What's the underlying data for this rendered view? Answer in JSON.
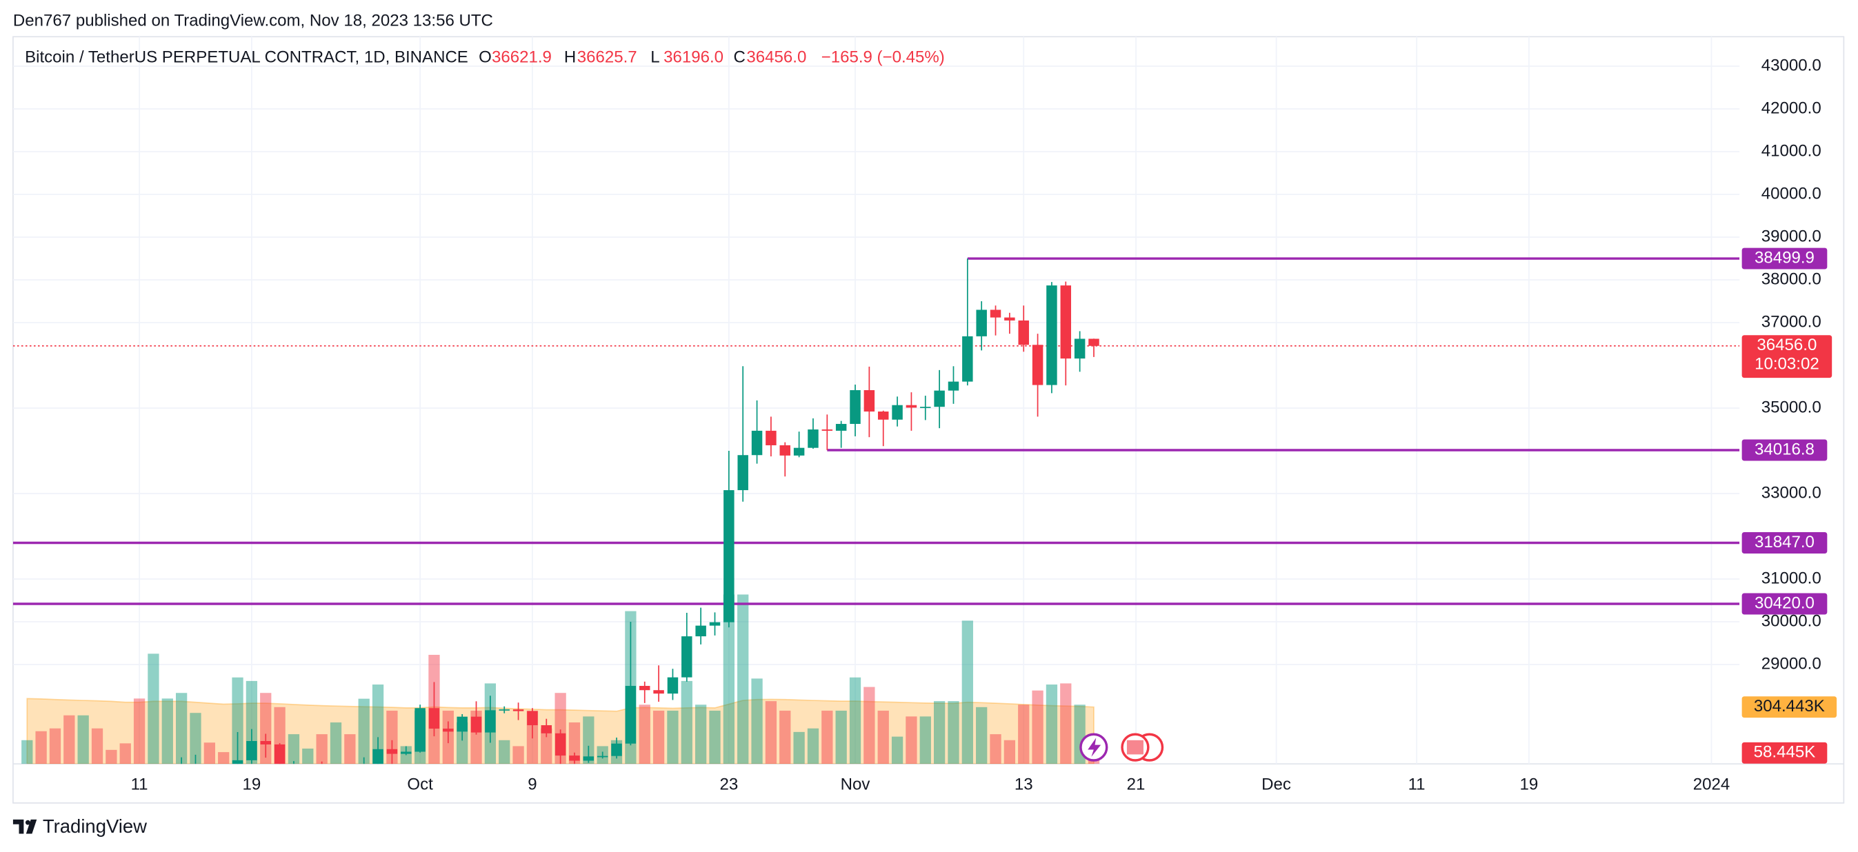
{
  "publisher": "Den767 published on TradingView.com, Nov 18, 2023 13:56 UTC",
  "brand": "TradingView",
  "header": {
    "symbol": "Bitcoin / TetherUS PERPETUAL CONTRACT, 1D, BINANCE",
    "ohlc": [
      {
        "key": "O",
        "value": "36621.9"
      },
      {
        "key": "H",
        "value": "36625.7"
      },
      {
        "key": "L",
        "value": "36196.0"
      },
      {
        "key": "C",
        "value": "36456.0"
      }
    ],
    "change": "−165.9 (−0.45%)"
  },
  "chart_data": {
    "type": "candlestick",
    "up_color": "#089981",
    "down_color": "#f23645",
    "level_color": "#9c27b0",
    "volume_ma_color": "#ff9800",
    "grid": true,
    "x": [
      "2023-09-03",
      "2023-09-04",
      "2023-09-05",
      "2023-09-06",
      "2023-09-07",
      "2023-09-08",
      "2023-09-09",
      "2023-09-10",
      "2023-09-11",
      "2023-09-12",
      "2023-09-13",
      "2023-09-14",
      "2023-09-15",
      "2023-09-16",
      "2023-09-17",
      "2023-09-18",
      "2023-09-19",
      "2023-09-20",
      "2023-09-21",
      "2023-09-22",
      "2023-09-23",
      "2023-09-24",
      "2023-09-25",
      "2023-09-26",
      "2023-09-27",
      "2023-09-28",
      "2023-09-29",
      "2023-09-30",
      "2023-10-01",
      "2023-10-02",
      "2023-10-03",
      "2023-10-04",
      "2023-10-05",
      "2023-10-06",
      "2023-10-07",
      "2023-10-08",
      "2023-10-09",
      "2023-10-10",
      "2023-10-11",
      "2023-10-12",
      "2023-10-13",
      "2023-10-14",
      "2023-10-15",
      "2023-10-16",
      "2023-10-17",
      "2023-10-18",
      "2023-10-19",
      "2023-10-20",
      "2023-10-21",
      "2023-10-22",
      "2023-10-23",
      "2023-10-24",
      "2023-10-25",
      "2023-10-26",
      "2023-10-27",
      "2023-10-28",
      "2023-10-29",
      "2023-10-30",
      "2023-10-31",
      "2023-11-01",
      "2023-11-02",
      "2023-11-03",
      "2023-11-04",
      "2023-11-05",
      "2023-11-06",
      "2023-11-07",
      "2023-11-08",
      "2023-11-09",
      "2023-11-10",
      "2023-11-11",
      "2023-11-12",
      "2023-11-13",
      "2023-11-14",
      "2023-11-15",
      "2023-11-16",
      "2023-11-17",
      "2023-11-18"
    ],
    "open": [
      25940,
      26000,
      25810,
      25780,
      25750,
      26240,
      25900,
      25890,
      25830,
      25150,
      25850,
      26220,
      26530,
      26600,
      26570,
      26530,
      26760,
      27210,
      27130,
      26570,
      26580,
      26580,
      26250,
      26300,
      26220,
      26360,
      27020,
      26910,
      26960,
      27980,
      27500,
      27430,
      27780,
      27410,
      27930,
      27950,
      27910,
      27580,
      27390,
      26870,
      26750,
      26850,
      26860,
      27150,
      28500,
      28400,
      28320,
      28700,
      29660,
      29910,
      29990,
      33080,
      33900,
      34470,
      34130,
      33890,
      34070,
      34500,
      34470,
      34630,
      35420,
      34920,
      34730,
      35070,
      35010,
      35030,
      35410,
      35620,
      36680,
      37300,
      37120,
      37050,
      36480,
      35540,
      37870,
      36160,
      36621.9
    ],
    "high": [
      26120,
      26100,
      25860,
      26030,
      26440,
      26420,
      25940,
      26000,
      25880,
      26550,
      26380,
      26830,
      26890,
      26670,
      26630,
      27420,
      27490,
      27380,
      27160,
      26740,
      26640,
      26730,
      26430,
      26380,
      26830,
      27300,
      27230,
      27090,
      28060,
      28590,
      27670,
      27840,
      28140,
      28270,
      28020,
      28110,
      27980,
      27730,
      27480,
      26940,
      27100,
      26960,
      27290,
      30000,
      28600,
      28980,
      28900,
      30210,
      30330,
      30220,
      34000,
      35980,
      35180,
      34800,
      34200,
      34450,
      34760,
      34850,
      34700,
      35550,
      35970,
      34940,
      35270,
      35370,
      35290,
      35890,
      35980,
      38499.9,
      37500,
      37400,
      37230,
      37400,
      36740,
      37950,
      37960,
      36800,
      36625.7
    ],
    "low": [
      25800,
      25600,
      25580,
      25380,
      25610,
      25650,
      25800,
      25600,
      24900,
      25130,
      25770,
      26130,
      26220,
      26470,
      26410,
      26380,
      26670,
      26820,
      26350,
      26480,
      26510,
      26140,
      25990,
      26100,
      26090,
      26330,
      26670,
      26880,
      26940,
      27320,
      27160,
      27220,
      27360,
      27170,
      27860,
      27700,
      27270,
      27300,
      26540,
      26560,
      26700,
      26800,
      26800,
      27110,
      28100,
      28130,
      28170,
      28600,
      29470,
      29680,
      29870,
      32810,
      33700,
      33870,
      33400,
      33850,
      34050,
      34016.8,
      34070,
      34340,
      34320,
      34110,
      34570,
      34470,
      34720,
      34530,
      35100,
      35530,
      36350,
      36700,
      36740,
      36320,
      34800,
      35350,
      35530,
      35850,
      36196.0
    ],
    "close": [
      26000,
      25810,
      25780,
      25750,
      26240,
      25900,
      25890,
      25830,
      25150,
      25850,
      26220,
      26530,
      26600,
      26570,
      26530,
      26760,
      27210,
      27130,
      26570,
      26580,
      26580,
      26250,
      26300,
      26220,
      26360,
      27020,
      26910,
      26960,
      27980,
      27500,
      27430,
      27780,
      27410,
      27930,
      27950,
      27910,
      27580,
      27390,
      26870,
      26750,
      26850,
      26860,
      27150,
      28500,
      28400,
      28320,
      28700,
      29660,
      29910,
      29990,
      33080,
      33900,
      34470,
      34130,
      33890,
      34070,
      34500,
      34470,
      34630,
      35420,
      34920,
      34730,
      35070,
      35010,
      35030,
      35410,
      35620,
      36680,
      37300,
      37120,
      37050,
      36480,
      35540,
      37870,
      36160,
      36621.9,
      36456.0
    ],
    "volume": [
      127,
      175,
      190,
      260,
      260,
      190,
      75,
      110,
      350,
      590,
      350,
      380,
      273,
      114,
      63,
      463,
      444,
      380,
      304,
      159,
      82,
      159,
      222,
      159,
      349,
      425,
      285,
      95,
      285,
      584,
      285,
      222,
      285,
      431,
      127,
      95,
      285,
      190,
      380,
      222,
      254,
      95,
      127,
      818,
      317,
      285,
      285,
      444,
      317,
      285,
      907,
      907,
      457,
      336,
      285,
      171,
      190,
      285,
      285,
      463,
      412,
      285,
      146,
      254,
      254,
      336,
      336,
      767,
      304,
      159,
      127,
      317,
      393,
      425,
      431,
      317,
      58.445
    ],
    "volume_ma": [
      350,
      348,
      345,
      342,
      340,
      338,
      335,
      330,
      330,
      335,
      335,
      335,
      330,
      325,
      320,
      322,
      325,
      325,
      322,
      318,
      315,
      312,
      310,
      308,
      306,
      305,
      303,
      300,
      300,
      305,
      302,
      300,
      300,
      302,
      298,
      295,
      293,
      290,
      290,
      288,
      286,
      284,
      282,
      300,
      302,
      300,
      298,
      300,
      302,
      300,
      320,
      340,
      345,
      346,
      345,
      342,
      340,
      338,
      336,
      336,
      334,
      332,
      330,
      328,
      326,
      325,
      324,
      330,
      328,
      325,
      322,
      318,
      315,
      312,
      310,
      308,
      304.443
    ],
    "xlim": [
      "2023-09-02",
      "2024-01-03"
    ],
    "ylim": [
      26675,
      43690
    ],
    "volume_lim": [
      0,
      3894
    ],
    "xticks": [
      {
        "value": "2023-09-11",
        "label": "11"
      },
      {
        "value": "2023-09-19",
        "label": "19"
      },
      {
        "value": "2023-10-01",
        "label": "Oct"
      },
      {
        "value": "2023-10-09",
        "label": "9"
      },
      {
        "value": "2023-10-23",
        "label": "23"
      },
      {
        "value": "2023-11-01",
        "label": "Nov"
      },
      {
        "value": "2023-11-13",
        "label": "13"
      },
      {
        "value": "2023-11-21",
        "label": "21"
      },
      {
        "value": "2023-12-01",
        "label": "Dec"
      },
      {
        "value": "2023-12-11",
        "label": "11"
      },
      {
        "value": "2023-12-19",
        "label": "19"
      },
      {
        "value": "2024-01-01",
        "label": "2024"
      }
    ],
    "yticks": [
      {
        "value": 43000,
        "label": "43000.0"
      },
      {
        "value": 42000,
        "label": "42000.0"
      },
      {
        "value": 41000,
        "label": "41000.0"
      },
      {
        "value": 40000,
        "label": "40000.0"
      },
      {
        "value": 39000,
        "label": "39000.0"
      },
      {
        "value": 38000,
        "label": "38000.0"
      },
      {
        "value": 37000,
        "label": "37000.0"
      },
      {
        "value": 35000,
        "label": "35000.0"
      },
      {
        "value": 33000,
        "label": "33000.0"
      },
      {
        "value": 31000,
        "label": "31000.0"
      },
      {
        "value": 30000,
        "label": "30000.0"
      },
      {
        "value": 29000,
        "label": "29000.0"
      }
    ],
    "levels": [
      {
        "value": 38499.9,
        "label": "38499.9",
        "from": "2023-11-09"
      },
      {
        "value": 34016.8,
        "label": "34016.8",
        "from": "2023-10-30"
      },
      {
        "value": 31847.0,
        "label": "31847.0"
      },
      {
        "value": 30420.0,
        "label": "30420.0"
      }
    ],
    "price_label": {
      "value": 36456.0,
      "label": "36456.0",
      "timer": "10:03:02"
    },
    "volume_ma_label": {
      "value": 304.443,
      "label": "304.443K"
    },
    "volume_label": {
      "value": 58.445,
      "label": "58.445K"
    }
  }
}
